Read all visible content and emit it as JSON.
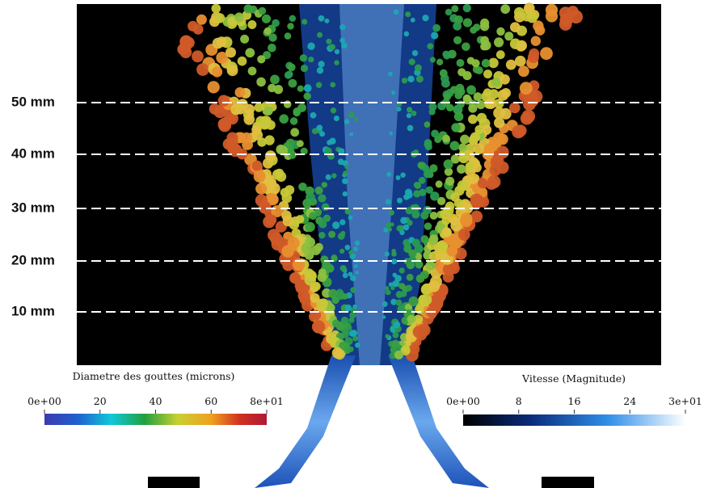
{
  "heights": [
    "50 mm",
    "40 mm",
    "30 mm",
    "20 mm",
    "10 mm"
  ],
  "diameter_colorbar": {
    "title": "Diametre des gouttes (microns)",
    "ticks": [
      "0e+00",
      "20",
      "40",
      "60",
      "8e+01"
    ]
  },
  "velocity_colorbar": {
    "title": "Vitesse (Magnitude)",
    "ticks": [
      "0e+00",
      "8",
      "16",
      "24",
      "3e+01"
    ]
  }
}
